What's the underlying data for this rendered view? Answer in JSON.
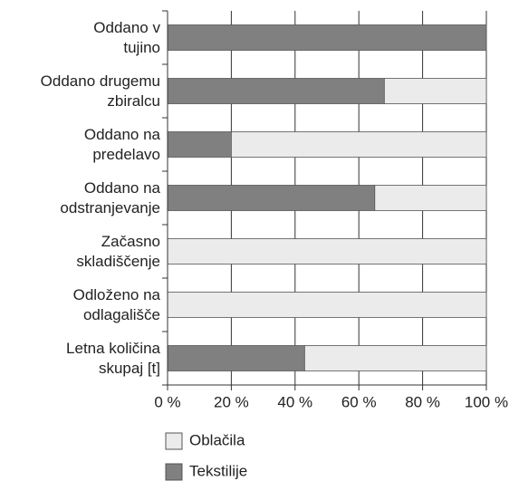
{
  "chart_data": {
    "type": "bar",
    "orientation": "horizontal",
    "stacked": true,
    "categories": [
      "Oddano v\ntujino",
      "Oddano drugemu\nzbiralcu",
      "Oddano na\npredelavo",
      "Oddano na\nodstranjevanje",
      "Začasno\nskladiščenje",
      "Odloženo na\nodlagališče",
      "Letna količina\nskupaj [t]"
    ],
    "series": [
      {
        "name": "Tekstilije",
        "color": "#808080",
        "values": [
          100,
          68,
          20,
          65,
          0,
          0,
          43
        ]
      },
      {
        "name": "Oblačila",
        "color": "#ebebeb",
        "values": [
          0,
          32,
          80,
          35,
          100,
          100,
          57
        ]
      }
    ],
    "xlim": [
      0,
      100
    ],
    "xticks": [
      {
        "value": 0,
        "label": "0 %"
      },
      {
        "value": 20,
        "label": "20 %"
      },
      {
        "value": 40,
        "label": "40 %"
      },
      {
        "value": 60,
        "label": "60 %"
      },
      {
        "value": 80,
        "label": "80 %"
      },
      {
        "value": 100,
        "label": "100 %"
      }
    ],
    "grid": true,
    "legend": "bottom"
  }
}
